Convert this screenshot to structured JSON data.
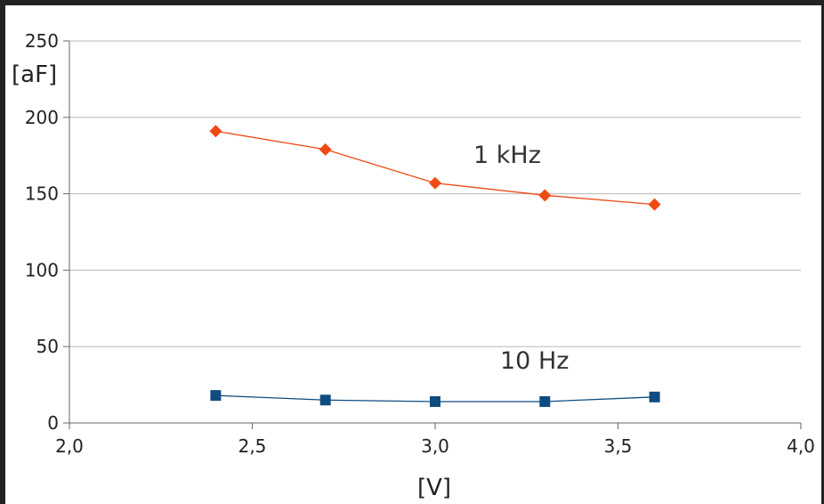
{
  "chart_data": {
    "type": "line",
    "xlabel": "[V]",
    "ylabel": "[aF]",
    "xlim": [
      2.0,
      4.0
    ],
    "ylim": [
      0,
      250
    ],
    "x_ticks": [
      "2,0",
      "2,5",
      "3,0",
      "3,5",
      "4,0"
    ],
    "y_ticks": [
      "0",
      "50",
      "100",
      "150",
      "200",
      "250"
    ],
    "grid": "horizontal",
    "series": [
      {
        "name": "1 kHz",
        "color": "#f04a14",
        "marker": "diamond",
        "x": [
          2.4,
          2.7,
          3.0,
          3.3,
          3.6
        ],
        "y": [
          191,
          179,
          157,
          149,
          143
        ]
      },
      {
        "name": "10 Hz",
        "color": "#0f4c81",
        "marker": "square",
        "x": [
          2.4,
          2.7,
          3.0,
          3.3,
          3.6
        ],
        "y": [
          18,
          15,
          14,
          14,
          17
        ]
      }
    ]
  }
}
